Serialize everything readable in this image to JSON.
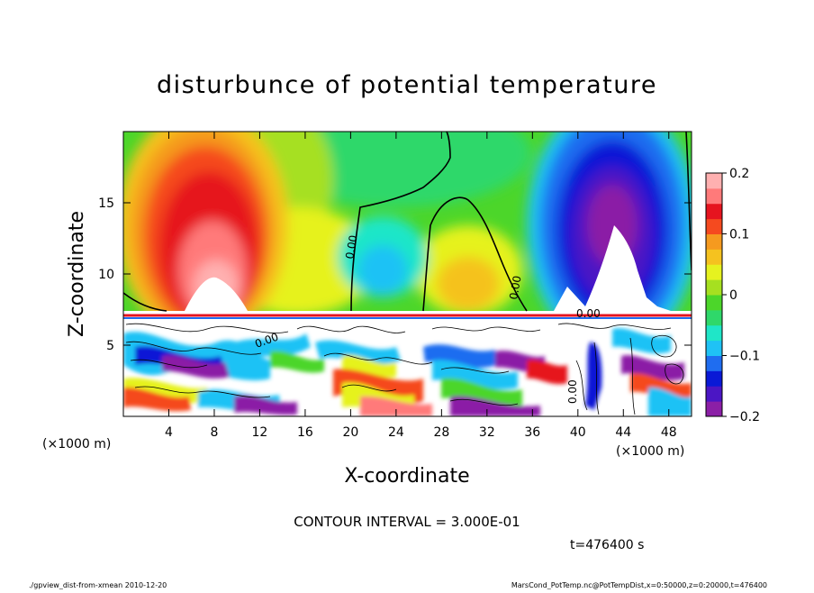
{
  "chart_data": {
    "type": "heatmap",
    "title": "disturbunce of potential temperature",
    "xlabel": "X-coordinate",
    "ylabel": "Z-coordinate",
    "x_unit": "(×1000 m)",
    "y_unit": "(×1000 m)",
    "xlim": [
      0,
      50
    ],
    "ylim": [
      0,
      20
    ],
    "x_ticks": [
      4,
      8,
      12,
      16,
      20,
      24,
      28,
      32,
      36,
      40,
      44,
      48
    ],
    "y_ticks": [
      5,
      10,
      15
    ],
    "colorbar": {
      "min": -0.2,
      "max": 0.2,
      "ticks": [
        0.2,
        0.1,
        0,
        -0.1,
        -0.2
      ],
      "tick_labels": [
        "0.2",
        "0.1",
        "0",
        "−0.1",
        "−0.2"
      ]
    },
    "contour_label": "0.00",
    "contour_interval_text": "CONTOUR INTERVAL = 3.000E-01",
    "time_text": "t=476400 s"
  },
  "footer": {
    "left": "./gpview_dist-from-xmean  2010-12-20",
    "right": "MarsCond_PotTemp.nc@PotTempDist,x=0:50000,z=0:20000,t=476400"
  },
  "colors": {
    "scale": [
      "#8b1fa6",
      "#4b16c4",
      "#0a19d6",
      "#1f6df0",
      "#1fc2f5",
      "#1fe6c8",
      "#2fd86a",
      "#4cd62a",
      "#a6e020",
      "#e6f21f",
      "#f5c21f",
      "#f59a1f",
      "#f54a1f",
      "#e6141f",
      "#ff7a7a",
      "#ffb0b0"
    ],
    "background": "#ffffff",
    "axis": "#000000"
  }
}
